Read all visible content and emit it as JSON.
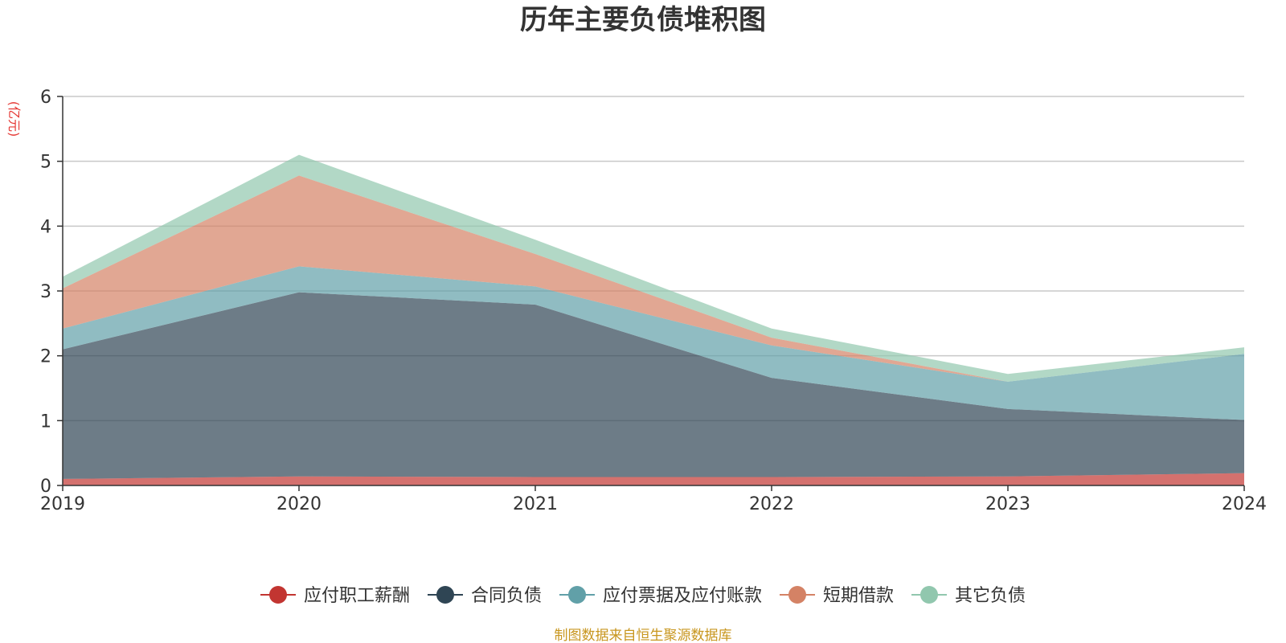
{
  "chart_data": {
    "type": "area",
    "stacked": true,
    "title": "历年主要负债堆积图",
    "unit_label": "(亿元)",
    "x": [
      "2019",
      "2020",
      "2021",
      "2022",
      "2023",
      "2024"
    ],
    "ylim": [
      0,
      6
    ],
    "yticks": [
      "0",
      "1",
      "2",
      "3",
      "4",
      "5",
      "6"
    ],
    "grid": true,
    "legend_position": "bottom",
    "series": [
      {
        "name": "应付职工薪酬",
        "color": "#c23531",
        "values": [
          0.1,
          0.14,
          0.13,
          0.13,
          0.14,
          0.19
        ]
      },
      {
        "name": "合同负债",
        "color": "#2f4554",
        "values": [
          2.0,
          2.84,
          2.66,
          1.53,
          1.04,
          0.82
        ]
      },
      {
        "name": "应付票据及应付账款",
        "color": "#61a0a8",
        "values": [
          0.32,
          0.4,
          0.28,
          0.5,
          0.42,
          1.02
        ]
      },
      {
        "name": "短期借款",
        "color": "#d48265",
        "values": [
          0.62,
          1.4,
          0.5,
          0.12,
          0.0,
          0.0
        ]
      },
      {
        "name": "其它负债",
        "color": "#91c7ae",
        "values": [
          0.18,
          0.32,
          0.22,
          0.14,
          0.12,
          0.1
        ]
      }
    ]
  },
  "source_note": "制图数据来自恒生聚源数据库"
}
